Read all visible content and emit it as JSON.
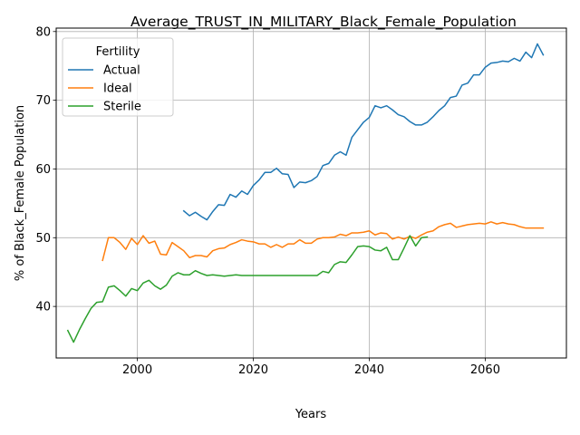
{
  "chart_data": {
    "type": "line",
    "title": "Average_TRUST_IN_MILITARY_Black_Female_Population",
    "xlabel": "Years",
    "ylabel": "% of Black_Female Population",
    "xlim": [
      1986,
      2074
    ],
    "ylim": [
      32.5,
      80.5
    ],
    "xticks": [
      2000,
      2020,
      2040,
      2060
    ],
    "yticks": [
      40,
      50,
      60,
      70,
      80
    ],
    "grid": true,
    "legend": {
      "title": "Fertility",
      "placement": "top-left"
    },
    "series": [
      {
        "name": "Actual",
        "color": "#1f77b4",
        "x": [
          2008,
          2009,
          2010,
          2011,
          2012,
          2013,
          2014,
          2015,
          2016,
          2017,
          2018,
          2019,
          2020,
          2021,
          2022,
          2023,
          2024,
          2025,
          2026,
          2027,
          2028,
          2029,
          2030,
          2031,
          2032,
          2033,
          2034,
          2035,
          2036,
          2037,
          2038,
          2039,
          2040,
          2041,
          2042,
          2043,
          2044,
          2045,
          2046,
          2047,
          2048,
          2049,
          2050,
          2051,
          2052,
          2053,
          2054,
          2055,
          2056,
          2057,
          2058,
          2059,
          2060,
          2061,
          2062,
          2063,
          2064,
          2065,
          2066,
          2067,
          2068,
          2069,
          2070
        ],
        "values": [
          53.9,
          53.2,
          53.7,
          53.1,
          52.6,
          53.8,
          54.8,
          54.7,
          56.3,
          55.9,
          56.8,
          56.3,
          57.6,
          58.4,
          59.5,
          59.5,
          60.1,
          59.3,
          59.2,
          57.3,
          58.1,
          58.0,
          58.3,
          58.9,
          60.5,
          60.8,
          62.0,
          62.5,
          62.0,
          64.6,
          65.7,
          66.8,
          67.5,
          69.2,
          68.9,
          69.2,
          68.6,
          67.9,
          67.6,
          66.9,
          66.4,
          66.4,
          66.8,
          67.6,
          68.5,
          69.2,
          70.4,
          70.6,
          72.2,
          72.5,
          73.7,
          73.7,
          74.8,
          75.4,
          75.5,
          75.7,
          75.6,
          76.1,
          75.7,
          77.0,
          76.2,
          78.2,
          76.6
        ]
      },
      {
        "name": "Ideal",
        "color": "#ff7f0e",
        "x": [
          1994,
          1995,
          1996,
          1997,
          1998,
          1999,
          2000,
          2001,
          2002,
          2003,
          2004,
          2005,
          2006,
          2007,
          2008,
          2009,
          2010,
          2011,
          2012,
          2013,
          2014,
          2015,
          2016,
          2017,
          2018,
          2019,
          2020,
          2021,
          2022,
          2023,
          2024,
          2025,
          2026,
          2027,
          2028,
          2029,
          2030,
          2031,
          2032,
          2033,
          2034,
          2035,
          2036,
          2037,
          2038,
          2039,
          2040,
          2041,
          2042,
          2043,
          2044,
          2045,
          2046,
          2047,
          2048,
          2049,
          2050,
          2051,
          2052,
          2053,
          2054,
          2055,
          2056,
          2057,
          2058,
          2059,
          2060,
          2061,
          2062,
          2063,
          2064,
          2065,
          2066,
          2067,
          2068,
          2069,
          2070
        ],
        "values": [
          46.7,
          50.0,
          50.0,
          49.3,
          48.3,
          49.9,
          49.0,
          50.3,
          49.2,
          49.5,
          47.6,
          47.5,
          49.3,
          48.7,
          48.1,
          47.1,
          47.4,
          47.4,
          47.2,
          48.1,
          48.4,
          48.5,
          49.0,
          49.3,
          49.7,
          49.5,
          49.4,
          49.1,
          49.1,
          48.6,
          49.0,
          48.6,
          49.1,
          49.1,
          49.7,
          49.2,
          49.2,
          49.8,
          50.0,
          50.0,
          50.1,
          50.5,
          50.3,
          50.7,
          50.7,
          50.8,
          51.0,
          50.4,
          50.7,
          50.6,
          49.8,
          50.1,
          49.8,
          50.2,
          49.9,
          50.4,
          50.8,
          51.0,
          51.6,
          51.9,
          52.1,
          51.5,
          51.7,
          51.9,
          52.0,
          52.1,
          52.0,
          52.3,
          52.0,
          52.2,
          52.0,
          51.9,
          51.6,
          51.4,
          51.4,
          51.4,
          51.4
        ]
      },
      {
        "name": "Sterile",
        "color": "#2ca02c",
        "x": [
          1988,
          1989,
          1990,
          1991,
          1992,
          1993,
          1994,
          1995,
          1996,
          1997,
          1998,
          1999,
          2000,
          2001,
          2002,
          2003,
          2004,
          2005,
          2006,
          2007,
          2008,
          2009,
          2010,
          2011,
          2012,
          2013,
          2014,
          2015,
          2016,
          2017,
          2018,
          2019,
          2020,
          2021,
          2022,
          2023,
          2024,
          2025,
          2026,
          2027,
          2028,
          2029,
          2030,
          2031,
          2032,
          2033,
          2034,
          2035,
          2036,
          2037,
          2038,
          2039,
          2040,
          2041,
          2042,
          2043,
          2044,
          2045,
          2046,
          2047,
          2048,
          2049,
          2050
        ],
        "values": [
          36.5,
          34.8,
          36.6,
          38.2,
          39.7,
          40.6,
          40.7,
          42.8,
          43.0,
          42.3,
          41.5,
          42.6,
          42.3,
          43.4,
          43.8,
          43.0,
          42.5,
          43.1,
          44.4,
          44.9,
          44.6,
          44.6,
          45.2,
          44.8,
          44.5,
          44.6,
          44.5,
          44.4,
          44.5,
          44.6,
          44.5,
          44.5,
          44.5,
          44.5,
          44.5,
          44.5,
          44.5,
          44.5,
          44.5,
          44.5,
          44.5,
          44.5,
          44.5,
          44.5,
          45.1,
          44.9,
          46.1,
          46.5,
          46.4,
          47.5,
          48.7,
          48.8,
          48.7,
          48.2,
          48.1,
          48.6,
          46.8,
          46.8,
          48.5,
          50.3,
          48.8,
          50.0,
          50.1
        ]
      }
    ]
  }
}
